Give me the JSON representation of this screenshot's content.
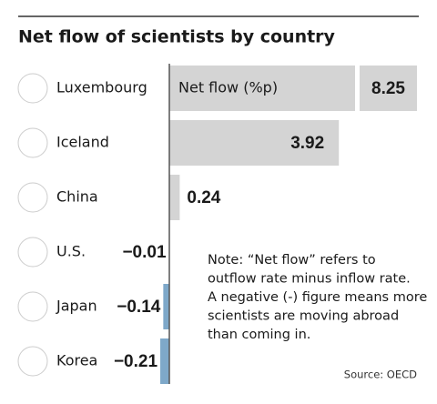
{
  "chart_data": {
    "type": "bar",
    "title": "Net flow of scientists by country",
    "value_label": "Net flow (%p)",
    "categories": [
      "Luxembourg",
      "Iceland",
      "China",
      "U.S.",
      "Japan",
      "Korea"
    ],
    "values": [
      8.25,
      3.92,
      0.24,
      -0.01,
      -0.14,
      -0.21
    ],
    "value_labels": [
      "8.25",
      "3.92",
      "0.24",
      "−0.01",
      "−0.14",
      "−0.21"
    ],
    "positive_color": "#d4d4d4",
    "negative_color": "#7ea8c9",
    "note": [
      "Note: “Net flow” refers to",
      "outflow rate minus inflow rate.",
      "A negative (-) figure means more",
      "scientists are moving abroad",
      "than coming in."
    ],
    "source": "Source: OECD"
  }
}
